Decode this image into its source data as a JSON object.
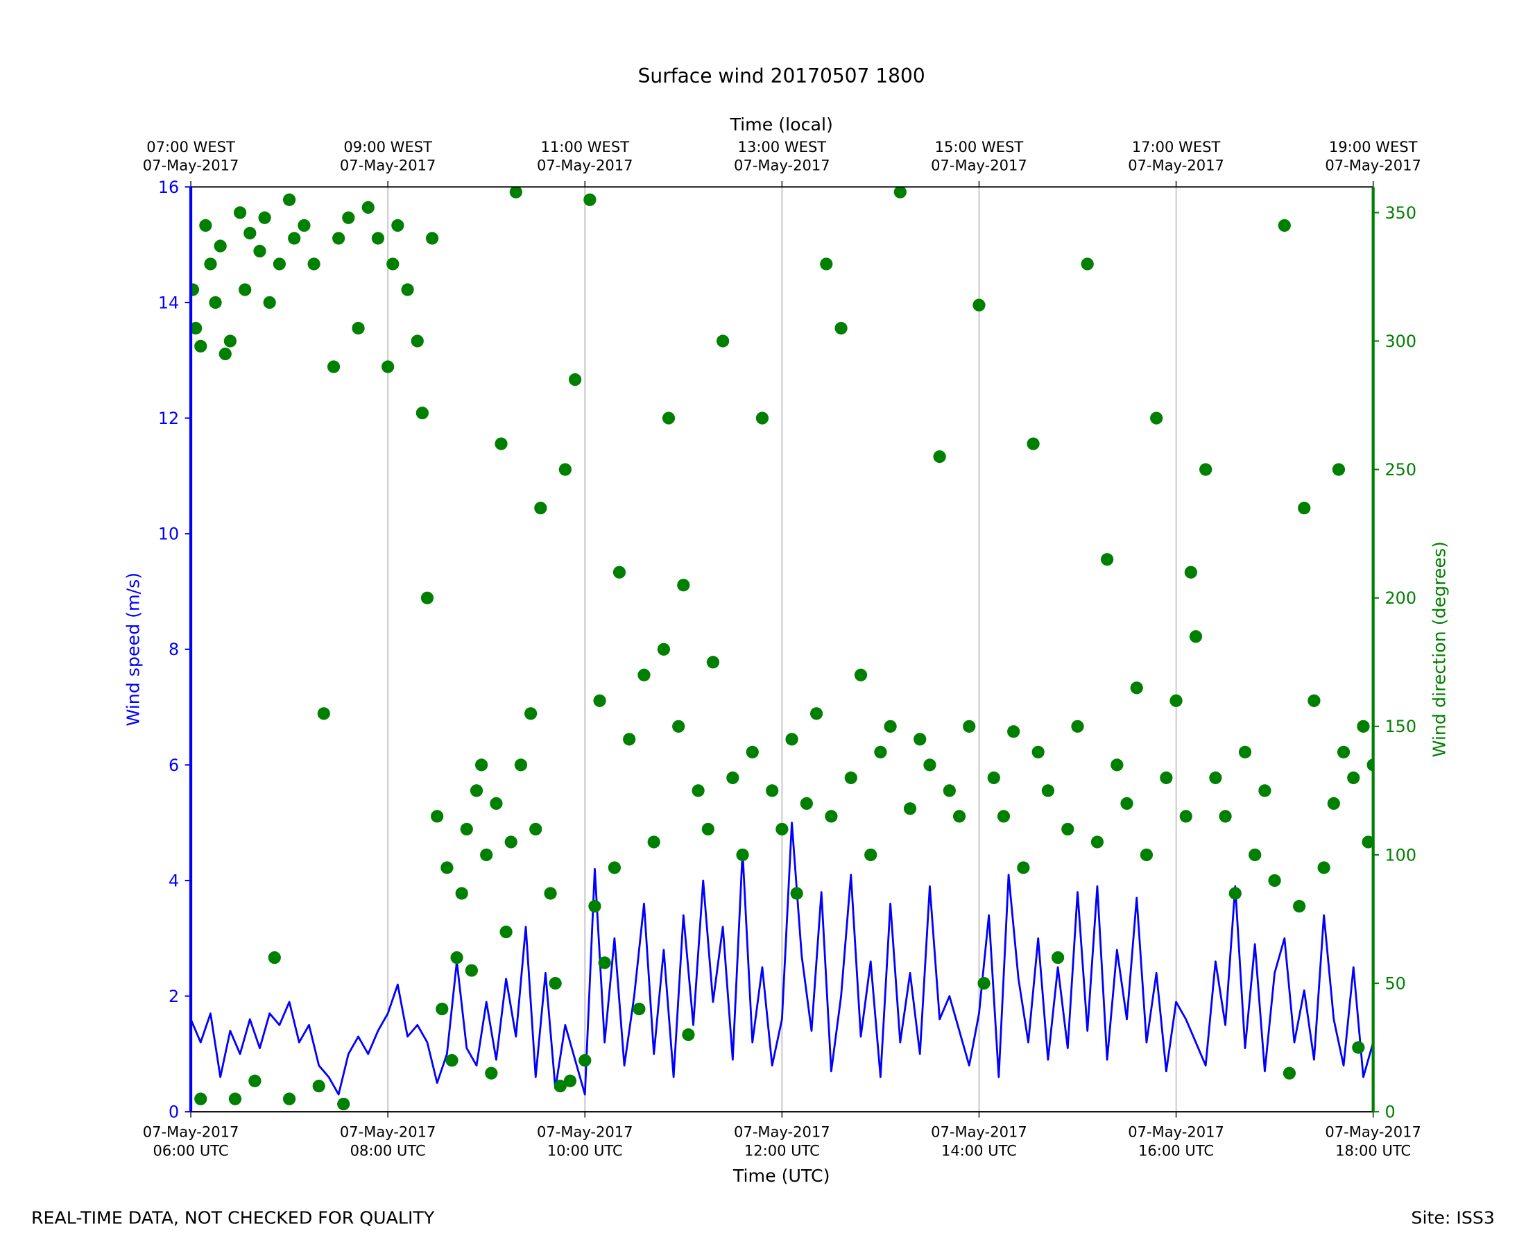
{
  "chart_data": {
    "type": "line",
    "title": "Surface wind 20170507 1800",
    "xlabel": "Time (UTC)",
    "x2label": "Time (local)",
    "ylabel": "Wind speed (m/s)",
    "y2label": "Wind direction (degrees)",
    "footer": {
      "left": "REAL-TIME DATA, NOT CHECKED FOR QUALITY",
      "right": "Site: ISS3"
    },
    "xlim": [
      6,
      18
    ],
    "xticks": [
      {
        "value": 6,
        "label": "07-May-2017\n06:00 UTC"
      },
      {
        "value": 8,
        "label": "07-May-2017\n08:00 UTC"
      },
      {
        "value": 10,
        "label": "07-May-2017\n10:00 UTC"
      },
      {
        "value": 12,
        "label": "07-May-2017\n12:00 UTC"
      },
      {
        "value": 14,
        "label": "07-May-2017\n14:00 UTC"
      },
      {
        "value": 16,
        "label": "07-May-2017\n16:00 UTC"
      },
      {
        "value": 18,
        "label": "07-May-2017\n18:00 UTC"
      }
    ],
    "x2ticks": [
      {
        "value": 6,
        "label": "07:00 WEST\n07-May-2017"
      },
      {
        "value": 8,
        "label": "09:00 WEST\n07-May-2017"
      },
      {
        "value": 10,
        "label": "11:00 WEST\n07-May-2017"
      },
      {
        "value": 12,
        "label": "13:00 WEST\n07-May-2017"
      },
      {
        "value": 14,
        "label": "15:00 WEST\n07-May-2017"
      },
      {
        "value": 16,
        "label": "17:00 WEST\n07-May-2017"
      },
      {
        "value": 18,
        "label": "19:00 WEST\n07-May-2017"
      }
    ],
    "ylim": [
      0,
      16
    ],
    "yticks": [
      0,
      2,
      4,
      6,
      8,
      10,
      12,
      14,
      16
    ],
    "y2lim": [
      0,
      360
    ],
    "y2ticks": [
      0,
      50,
      100,
      150,
      200,
      250,
      300,
      350
    ],
    "grid": true,
    "series": [
      {
        "type": "line",
        "color": "#0000ff",
        "x": [
          6.0,
          6.1,
          6.2,
          6.3,
          6.4,
          6.5,
          6.6,
          6.7,
          6.8,
          6.9,
          7.0,
          7.1,
          7.2,
          7.3,
          7.4,
          7.5,
          7.6,
          7.7,
          7.8,
          7.9,
          8.0,
          8.1,
          8.2,
          8.3,
          8.4,
          8.5,
          8.6,
          8.7,
          8.8,
          8.9,
          9.0,
          9.1,
          9.2,
          9.3,
          9.4,
          9.5,
          9.6,
          9.7,
          9.8,
          9.9,
          10.0,
          10.1,
          10.2,
          10.3,
          10.4,
          10.5,
          10.6,
          10.7,
          10.8,
          10.9,
          11.0,
          11.1,
          11.2,
          11.3,
          11.4,
          11.5,
          11.6,
          11.7,
          11.8,
          11.9,
          12.0,
          12.1,
          12.2,
          12.3,
          12.4,
          12.5,
          12.6,
          12.7,
          12.8,
          12.9,
          13.0,
          13.1,
          13.2,
          13.3,
          13.4,
          13.5,
          13.6,
          13.7,
          13.8,
          13.9,
          14.0,
          14.1,
          14.2,
          14.3,
          14.4,
          14.5,
          14.6,
          14.7,
          14.8,
          14.9,
          15.0,
          15.1,
          15.2,
          15.3,
          15.4,
          15.5,
          15.6,
          15.7,
          15.8,
          15.9,
          16.0,
          16.1,
          16.2,
          16.3,
          16.4,
          16.5,
          16.6,
          16.7,
          16.8,
          16.9,
          17.0,
          17.1,
          17.2,
          17.3,
          17.4,
          17.5,
          17.6,
          17.7,
          17.8,
          17.9,
          18.0
        ],
        "values": [
          1.6,
          1.2,
          1.7,
          0.6,
          1.4,
          1.0,
          1.6,
          1.1,
          1.7,
          1.5,
          1.9,
          1.2,
          1.5,
          0.8,
          0.6,
          0.3,
          1.0,
          1.3,
          1.0,
          1.4,
          1.7,
          2.2,
          1.3,
          1.5,
          1.2,
          0.5,
          1.0,
          2.6,
          1.1,
          0.8,
          1.9,
          0.9,
          2.3,
          1.3,
          3.2,
          0.6,
          2.4,
          0.4,
          1.5,
          0.9,
          0.3,
          4.2,
          1.2,
          3.0,
          0.8,
          2.0,
          3.6,
          1.0,
          2.8,
          0.6,
          3.4,
          1.5,
          4.0,
          1.9,
          3.2,
          0.9,
          4.5,
          1.2,
          2.5,
          0.8,
          1.6,
          5.0,
          2.7,
          1.4,
          3.8,
          0.7,
          2.0,
          4.1,
          1.3,
          2.6,
          0.6,
          3.6,
          1.2,
          2.4,
          1.0,
          3.9,
          1.6,
          2.0,
          1.4,
          0.8,
          1.7,
          3.4,
          0.6,
          4.1,
          2.3,
          1.2,
          3.0,
          0.9,
          2.5,
          1.1,
          3.8,
          1.4,
          3.9,
          0.9,
          2.8,
          1.6,
          3.7,
          1.2,
          2.4,
          0.7,
          1.9,
          1.6,
          1.2,
          0.8,
          2.6,
          1.5,
          3.9,
          1.1,
          2.9,
          0.7,
          2.4,
          3.0,
          1.2,
          2.1,
          0.9,
          3.4,
          1.6,
          0.8,
          2.5,
          0.6,
          1.2
        ]
      },
      {
        "type": "scatter",
        "axis": "y2",
        "color": "#008000",
        "x": [
          6.02,
          6.05,
          6.1,
          6.1,
          6.15,
          6.2,
          6.25,
          6.3,
          6.35,
          6.4,
          6.45,
          6.5,
          6.55,
          6.6,
          6.65,
          6.7,
          6.75,
          6.8,
          6.85,
          6.9,
          7.0,
          7.0,
          7.05,
          7.15,
          7.25,
          7.3,
          7.35,
          7.45,
          7.5,
          7.55,
          7.6,
          7.7,
          7.8,
          7.9,
          8.0,
          8.05,
          8.1,
          8.2,
          8.3,
          8.35,
          8.4,
          8.45,
          8.5,
          8.55,
          8.6,
          8.65,
          8.7,
          8.75,
          8.8,
          8.85,
          8.9,
          8.95,
          9.0,
          9.05,
          9.1,
          9.15,
          9.2,
          9.25,
          9.3,
          9.35,
          9.45,
          9.5,
          9.55,
          9.65,
          9.7,
          9.75,
          9.8,
          9.85,
          9.9,
          10.0,
          10.05,
          10.1,
          10.15,
          10.2,
          10.3,
          10.35,
          10.45,
          10.55,
          10.6,
          10.7,
          10.8,
          10.85,
          10.95,
          11.0,
          11.05,
          11.15,
          11.25,
          11.3,
          11.4,
          11.5,
          11.6,
          11.7,
          11.8,
          11.9,
          12.0,
          12.1,
          12.15,
          12.25,
          12.35,
          12.45,
          12.5,
          12.6,
          12.7,
          12.8,
          12.9,
          13.0,
          13.1,
          13.2,
          13.3,
          13.4,
          13.5,
          13.6,
          13.7,
          13.8,
          13.9,
          14.0,
          14.05,
          14.15,
          14.25,
          14.35,
          14.45,
          14.55,
          14.6,
          14.7,
          14.8,
          14.9,
          15.0,
          15.1,
          15.2,
          15.3,
          15.4,
          15.5,
          15.6,
          15.7,
          15.8,
          15.9,
          16.0,
          16.1,
          16.15,
          16.2,
          16.3,
          16.4,
          16.5,
          16.6,
          16.7,
          16.8,
          16.9,
          17.0,
          17.1,
          17.15,
          17.25,
          17.3,
          17.4,
          17.5,
          17.6,
          17.7,
          17.8,
          17.85,
          17.9,
          17.95,
          18.0,
          17.65
        ],
        "values": [
          320,
          305,
          298,
          5,
          345,
          330,
          315,
          337,
          295,
          300,
          5,
          350,
          320,
          342,
          12,
          335,
          348,
          315,
          60,
          330,
          355,
          5,
          340,
          345,
          330,
          10,
          155,
          290,
          340,
          3,
          348,
          305,
          352,
          340,
          290,
          330,
          345,
          320,
          300,
          272,
          200,
          340,
          115,
          40,
          95,
          20,
          60,
          85,
          110,
          55,
          125,
          135,
          100,
          15,
          120,
          260,
          70,
          105,
          358,
          135,
          155,
          110,
          235,
          85,
          50,
          10,
          250,
          12,
          285,
          20,
          355,
          80,
          160,
          58,
          95,
          210,
          145,
          40,
          170,
          105,
          180,
          270,
          150,
          205,
          30,
          125,
          110,
          175,
          300,
          130,
          100,
          140,
          270,
          125,
          110,
          145,
          85,
          120,
          155,
          330,
          115,
          305,
          130,
          170,
          100,
          140,
          150,
          358,
          118,
          145,
          135,
          255,
          125,
          115,
          150,
          314,
          50,
          130,
          115,
          148,
          95,
          260,
          140,
          125,
          60,
          110,
          150,
          330,
          105,
          215,
          135,
          120,
          165,
          100,
          270,
          130,
          160,
          115,
          210,
          185,
          250,
          130,
          115,
          85,
          140,
          100,
          125,
          90,
          345,
          15,
          80,
          235,
          160,
          95,
          120,
          140,
          130,
          25,
          150,
          105,
          135,
          250
        ]
      }
    ]
  }
}
